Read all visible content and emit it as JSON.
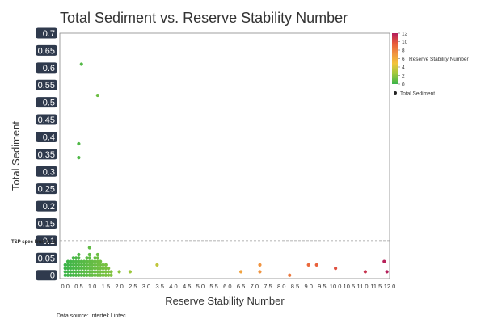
{
  "chart_data": {
    "type": "scatter",
    "title": "Total Sediment vs. Reserve Stability Number",
    "xlabel": "Reserve Stability Number",
    "ylabel": "Total Sediment",
    "xlim": [
      -0.2,
      12.0
    ],
    "ylim": [
      -0.01,
      0.7
    ],
    "x_ticks": [
      "0.0",
      "0.5",
      "1.0",
      "1.5",
      "2.0",
      "2.5",
      "3.0",
      "3.5",
      "4.0",
      "4.5",
      "5.0",
      "5.5",
      "6.0",
      "6.5",
      "7.0",
      "7.5",
      "8.0",
      "8.5",
      "9.0",
      "9.5",
      "10.0",
      "10.5",
      "11.0",
      "11.5",
      "12.0"
    ],
    "y_ticks": [
      "0.7",
      "0.65",
      "0.6",
      "0.55",
      "0.5",
      "0.45",
      "0.4",
      "0.35",
      "0.3",
      "0.25",
      "0.2",
      "0.15",
      "0.1",
      "0.05",
      "0"
    ],
    "reference_line": {
      "y": 0.1,
      "label": "TSP spec limit (0.1)"
    },
    "grid": false,
    "legend_position": "right",
    "color_scale": {
      "title": "Reserve Stability Number",
      "min": 0,
      "max": 12,
      "ticks": [
        "12",
        "10",
        "8",
        "6",
        "4",
        "2",
        "0"
      ],
      "colors": [
        "#3cb44a",
        "#9cc83c",
        "#f2c43a",
        "#f09440",
        "#e85a3a",
        "#b31c5c"
      ]
    },
    "series": [
      {
        "name": "Total Sediment",
        "points": [
          {
            "x": 0.0,
            "y": 0.0
          },
          {
            "x": 0.1,
            "y": 0.0
          },
          {
            "x": 0.2,
            "y": 0.0
          },
          {
            "x": 0.3,
            "y": 0.0
          },
          {
            "x": 0.4,
            "y": 0.0
          },
          {
            "x": 0.5,
            "y": 0.0
          },
          {
            "x": 0.6,
            "y": 0.0
          },
          {
            "x": 0.7,
            "y": 0.0
          },
          {
            "x": 0.8,
            "y": 0.0
          },
          {
            "x": 0.9,
            "y": 0.0
          },
          {
            "x": 1.0,
            "y": 0.0
          },
          {
            "x": 1.1,
            "y": 0.0
          },
          {
            "x": 1.2,
            "y": 0.0
          },
          {
            "x": 1.3,
            "y": 0.0
          },
          {
            "x": 1.4,
            "y": 0.0
          },
          {
            "x": 1.5,
            "y": 0.0
          },
          {
            "x": 1.6,
            "y": 0.0
          },
          {
            "x": 1.7,
            "y": 0.0
          },
          {
            "x": 0.0,
            "y": 0.01
          },
          {
            "x": 0.1,
            "y": 0.01
          },
          {
            "x": 0.2,
            "y": 0.01
          },
          {
            "x": 0.3,
            "y": 0.01
          },
          {
            "x": 0.4,
            "y": 0.01
          },
          {
            "x": 0.5,
            "y": 0.01
          },
          {
            "x": 0.6,
            "y": 0.01
          },
          {
            "x": 0.7,
            "y": 0.01
          },
          {
            "x": 0.8,
            "y": 0.01
          },
          {
            "x": 0.9,
            "y": 0.01
          },
          {
            "x": 1.0,
            "y": 0.01
          },
          {
            "x": 1.1,
            "y": 0.01
          },
          {
            "x": 1.2,
            "y": 0.01
          },
          {
            "x": 1.3,
            "y": 0.01
          },
          {
            "x": 1.4,
            "y": 0.01
          },
          {
            "x": 1.5,
            "y": 0.01
          },
          {
            "x": 1.6,
            "y": 0.01
          },
          {
            "x": 1.7,
            "y": 0.01
          },
          {
            "x": 0.0,
            "y": 0.02
          },
          {
            "x": 0.1,
            "y": 0.02
          },
          {
            "x": 0.2,
            "y": 0.02
          },
          {
            "x": 0.3,
            "y": 0.02
          },
          {
            "x": 0.4,
            "y": 0.02
          },
          {
            "x": 0.5,
            "y": 0.02
          },
          {
            "x": 0.6,
            "y": 0.02
          },
          {
            "x": 0.7,
            "y": 0.02
          },
          {
            "x": 0.8,
            "y": 0.02
          },
          {
            "x": 0.9,
            "y": 0.02
          },
          {
            "x": 1.0,
            "y": 0.02
          },
          {
            "x": 1.1,
            "y": 0.02
          },
          {
            "x": 1.2,
            "y": 0.02
          },
          {
            "x": 1.3,
            "y": 0.02
          },
          {
            "x": 1.4,
            "y": 0.02
          },
          {
            "x": 1.5,
            "y": 0.02
          },
          {
            "x": 1.6,
            "y": 0.02
          },
          {
            "x": 0.0,
            "y": 0.03
          },
          {
            "x": 0.1,
            "y": 0.03
          },
          {
            "x": 0.2,
            "y": 0.03
          },
          {
            "x": 0.3,
            "y": 0.03
          },
          {
            "x": 0.4,
            "y": 0.03
          },
          {
            "x": 0.5,
            "y": 0.03
          },
          {
            "x": 0.6,
            "y": 0.03
          },
          {
            "x": 0.7,
            "y": 0.03
          },
          {
            "x": 0.8,
            "y": 0.03
          },
          {
            "x": 0.9,
            "y": 0.03
          },
          {
            "x": 1.0,
            "y": 0.03
          },
          {
            "x": 1.1,
            "y": 0.03
          },
          {
            "x": 1.2,
            "y": 0.03
          },
          {
            "x": 1.3,
            "y": 0.03
          },
          {
            "x": 1.4,
            "y": 0.03
          },
          {
            "x": 1.5,
            "y": 0.03
          },
          {
            "x": 0.1,
            "y": 0.04
          },
          {
            "x": 0.2,
            "y": 0.04
          },
          {
            "x": 0.3,
            "y": 0.04
          },
          {
            "x": 0.4,
            "y": 0.04
          },
          {
            "x": 0.5,
            "y": 0.04
          },
          {
            "x": 0.6,
            "y": 0.04
          },
          {
            "x": 0.7,
            "y": 0.04
          },
          {
            "x": 0.8,
            "y": 0.04
          },
          {
            "x": 0.9,
            "y": 0.04
          },
          {
            "x": 1.0,
            "y": 0.04
          },
          {
            "x": 1.1,
            "y": 0.04
          },
          {
            "x": 1.2,
            "y": 0.04
          },
          {
            "x": 1.3,
            "y": 0.04
          },
          {
            "x": 0.3,
            "y": 0.05
          },
          {
            "x": 0.4,
            "y": 0.05
          },
          {
            "x": 0.5,
            "y": 0.05
          },
          {
            "x": 0.8,
            "y": 0.05
          },
          {
            "x": 0.9,
            "y": 0.05
          },
          {
            "x": 1.1,
            "y": 0.05
          },
          {
            "x": 1.2,
            "y": 0.05
          },
          {
            "x": 0.5,
            "y": 0.06
          },
          {
            "x": 0.9,
            "y": 0.06
          },
          {
            "x": 1.2,
            "y": 0.06
          },
          {
            "x": 0.9,
            "y": 0.08
          },
          {
            "x": 0.6,
            "y": 0.61
          },
          {
            "x": 1.2,
            "y": 0.52
          },
          {
            "x": 0.5,
            "y": 0.38
          },
          {
            "x": 0.5,
            "y": 0.34
          },
          {
            "x": 2.0,
            "y": 0.01
          },
          {
            "x": 2.4,
            "y": 0.01
          },
          {
            "x": 3.4,
            "y": 0.03
          },
          {
            "x": 6.5,
            "y": 0.01
          },
          {
            "x": 7.2,
            "y": 0.01
          },
          {
            "x": 7.2,
            "y": 0.03
          },
          {
            "x": 8.3,
            "y": 0.0
          },
          {
            "x": 9.0,
            "y": 0.03
          },
          {
            "x": 9.3,
            "y": 0.03
          },
          {
            "x": 10.0,
            "y": 0.02
          },
          {
            "x": 11.1,
            "y": 0.01
          },
          {
            "x": 11.8,
            "y": 0.04
          },
          {
            "x": 11.9,
            "y": 0.01
          }
        ]
      }
    ],
    "footnote": "Data source: Intertek Lintec"
  }
}
